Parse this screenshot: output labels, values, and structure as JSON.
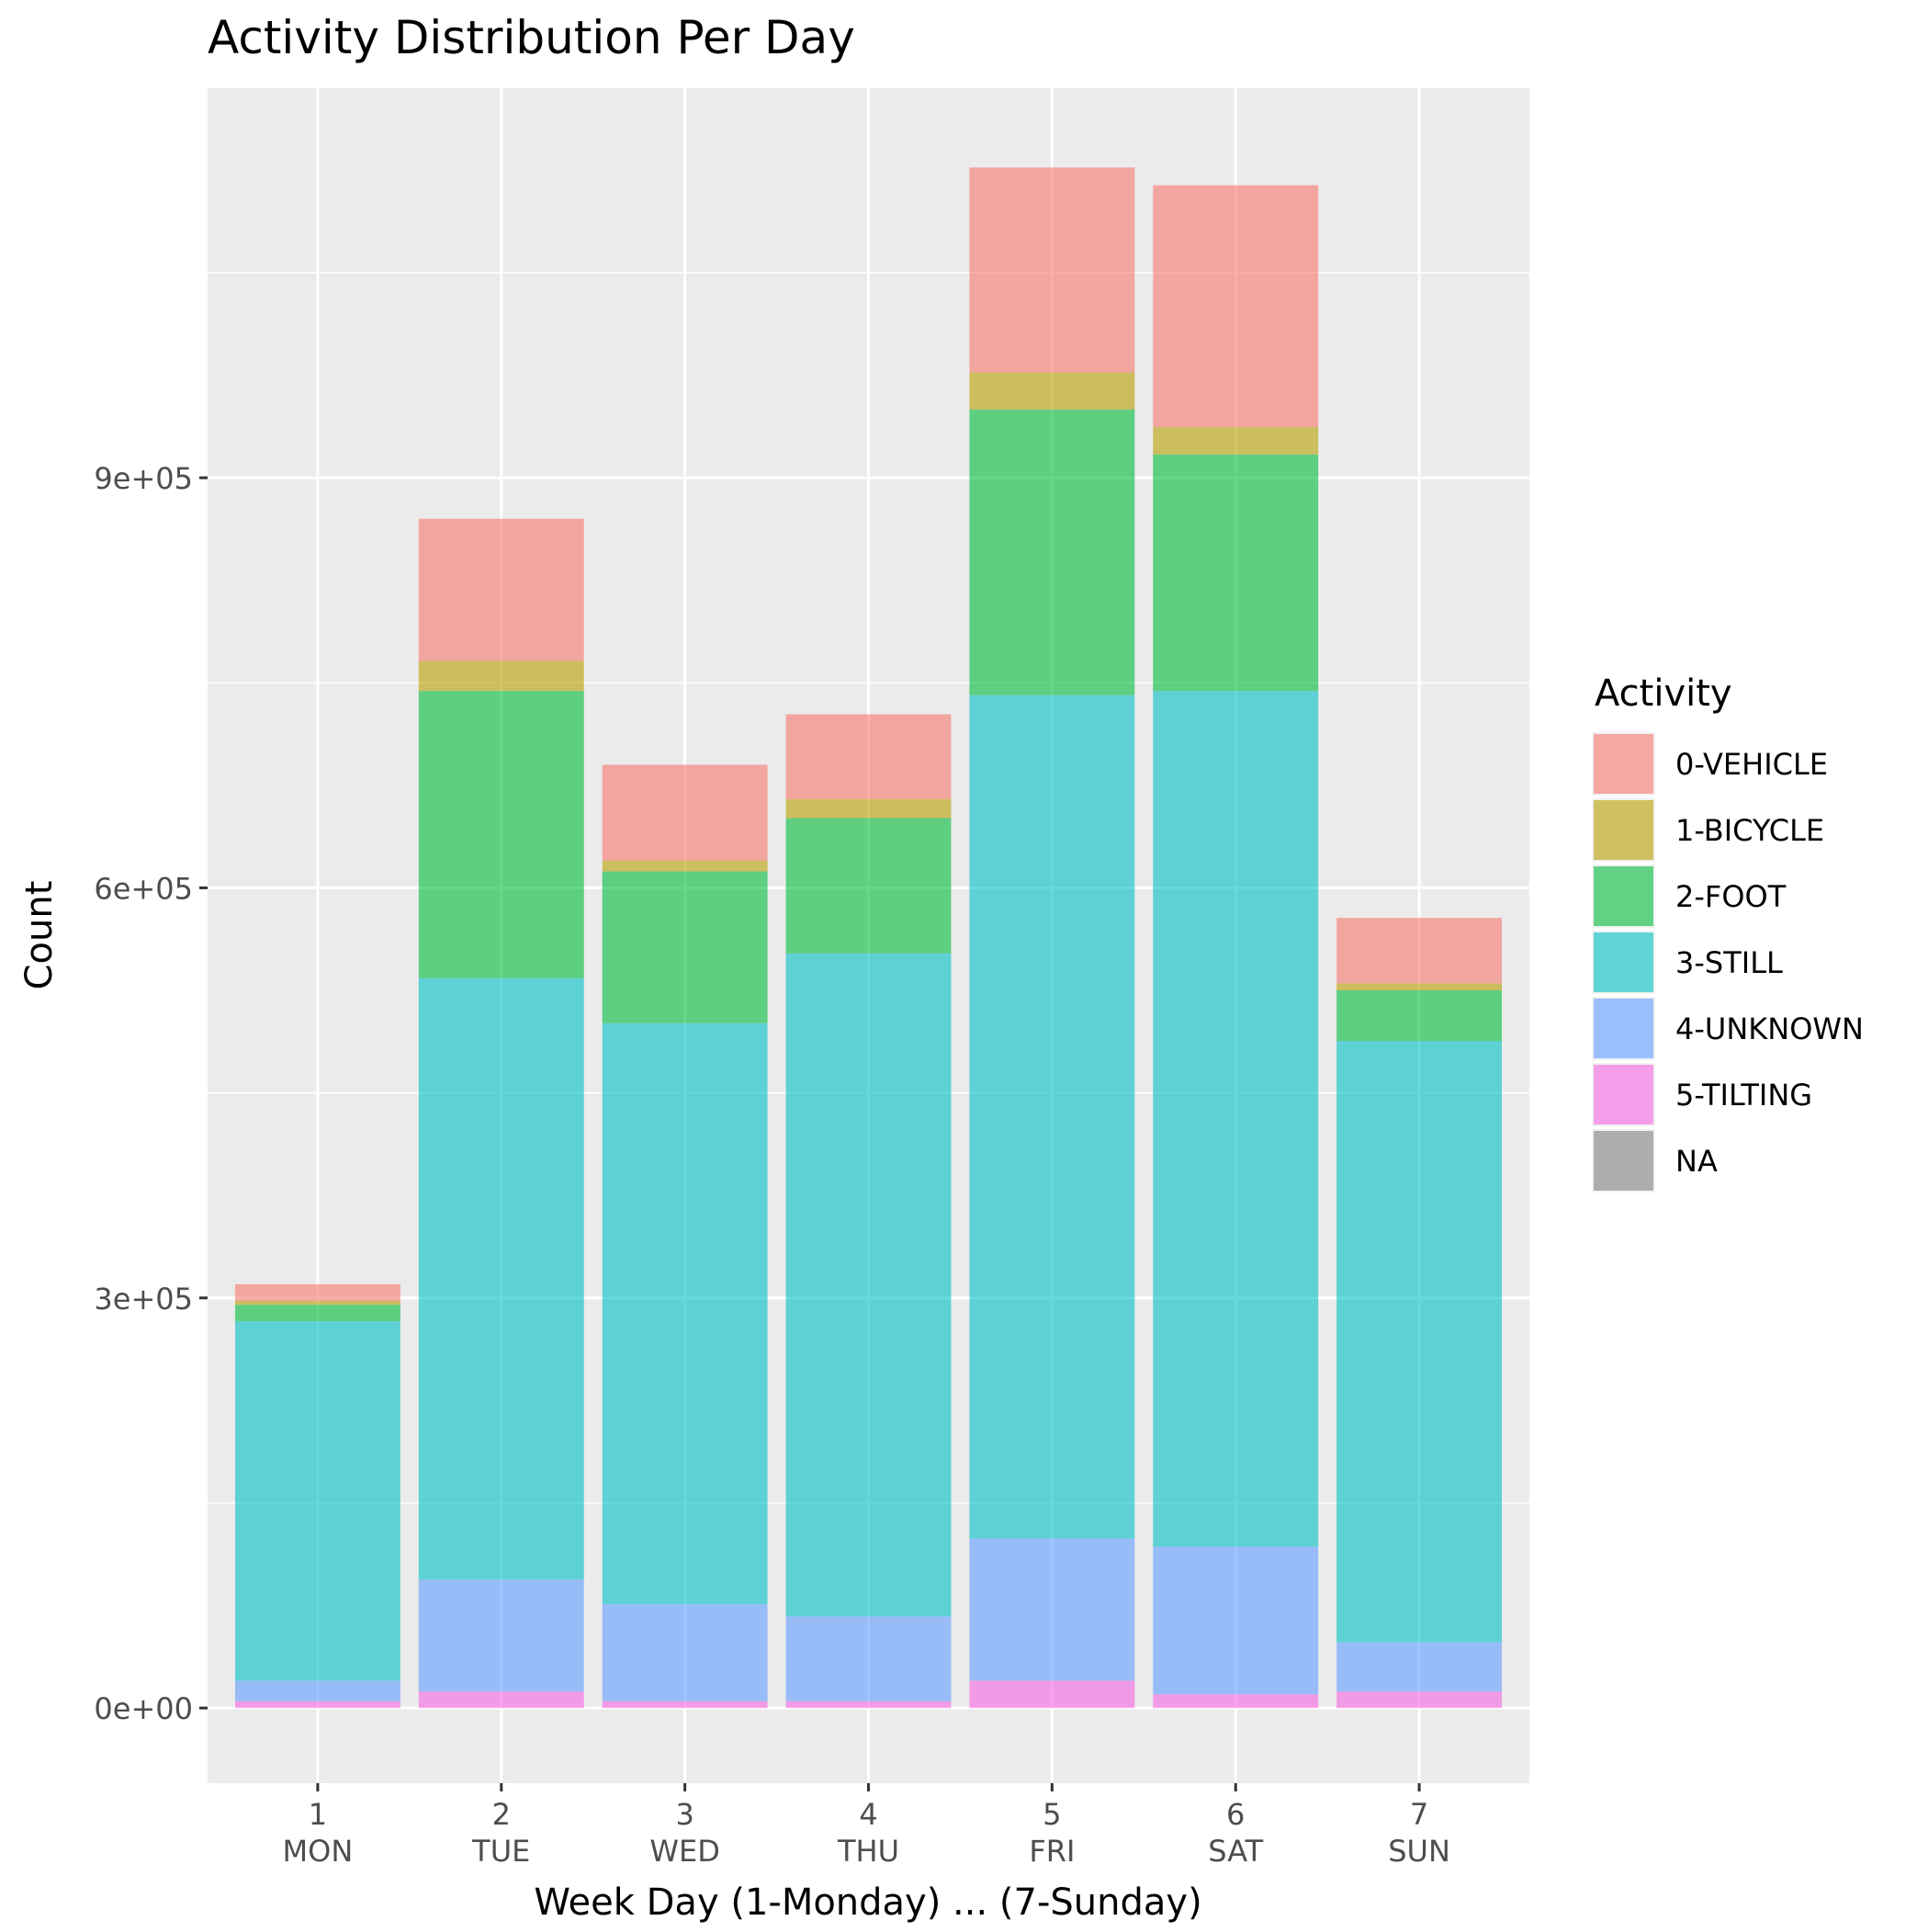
{
  "chart_data": {
    "type": "bar",
    "stacked": true,
    "title": "Activity Distribution Per Day",
    "xlabel": "Week Day (1-Monday) ... (7-Sunday)",
    "ylabel": "Count",
    "categories": [
      "1\nMON",
      "2\nTUE",
      "3\nWED",
      "4\nTHU",
      "5\nFRI",
      "6\nSAT",
      "7\nSUN"
    ],
    "x_tick_labels": [
      {
        "number": "1",
        "day": "MON"
      },
      {
        "number": "2",
        "day": "TUE"
      },
      {
        "number": "3",
        "day": "WED"
      },
      {
        "number": "4",
        "day": "THU"
      },
      {
        "number": "5",
        "day": "FRI"
      },
      {
        "number": "6",
        "day": "SAT"
      },
      {
        "number": "7",
        "day": "SUN"
      }
    ],
    "ylim": [
      -55000,
      1185000
    ],
    "y_ticks": [
      0,
      300000,
      600000,
      900000
    ],
    "y_tick_labels": [
      "0e+00",
      "3e+05",
      "6e+05",
      "9e+05"
    ],
    "y_minor_ticks": [
      150000,
      450000,
      750000,
      1050000
    ],
    "grid": true,
    "legend": {
      "title": "Activity",
      "position": "right"
    },
    "series": [
      {
        "name": "5-TILTING",
        "color": "#F564E3",
        "values": [
          5000,
          12000,
          5000,
          5000,
          20000,
          10000,
          12000
        ]
      },
      {
        "name": "4-UNKNOWN",
        "color": "#619CFF",
        "values": [
          15000,
          82000,
          71000,
          62000,
          104000,
          108000,
          36000
        ]
      },
      {
        "name": "3-STILL",
        "color": "#00BFC4",
        "values": [
          263000,
          440000,
          425000,
          485000,
          617000,
          626000,
          440000
        ]
      },
      {
        "name": "2-FOOT",
        "color": "#00BA38",
        "values": [
          12000,
          210000,
          111000,
          99000,
          209000,
          173000,
          37000
        ]
      },
      {
        "name": "1-BICYCLE",
        "color": "#B79F00",
        "values": [
          3000,
          22000,
          8000,
          14000,
          27000,
          20000,
          5000
        ]
      },
      {
        "name": "0-VEHICLE",
        "color": "#F8766D",
        "values": [
          12000,
          104000,
          70000,
          62000,
          150000,
          177000,
          48000
        ]
      },
      {
        "name": "NA",
        "color": "#7F7F7F",
        "values": [
          0,
          0,
          0,
          0,
          0,
          0,
          0
        ]
      }
    ],
    "legend_order": [
      "0-VEHICLE",
      "1-BICYCLE",
      "2-FOOT",
      "3-STILL",
      "4-UNKNOWN",
      "5-TILTING",
      "NA"
    ],
    "bar_opacity": 0.6
  }
}
